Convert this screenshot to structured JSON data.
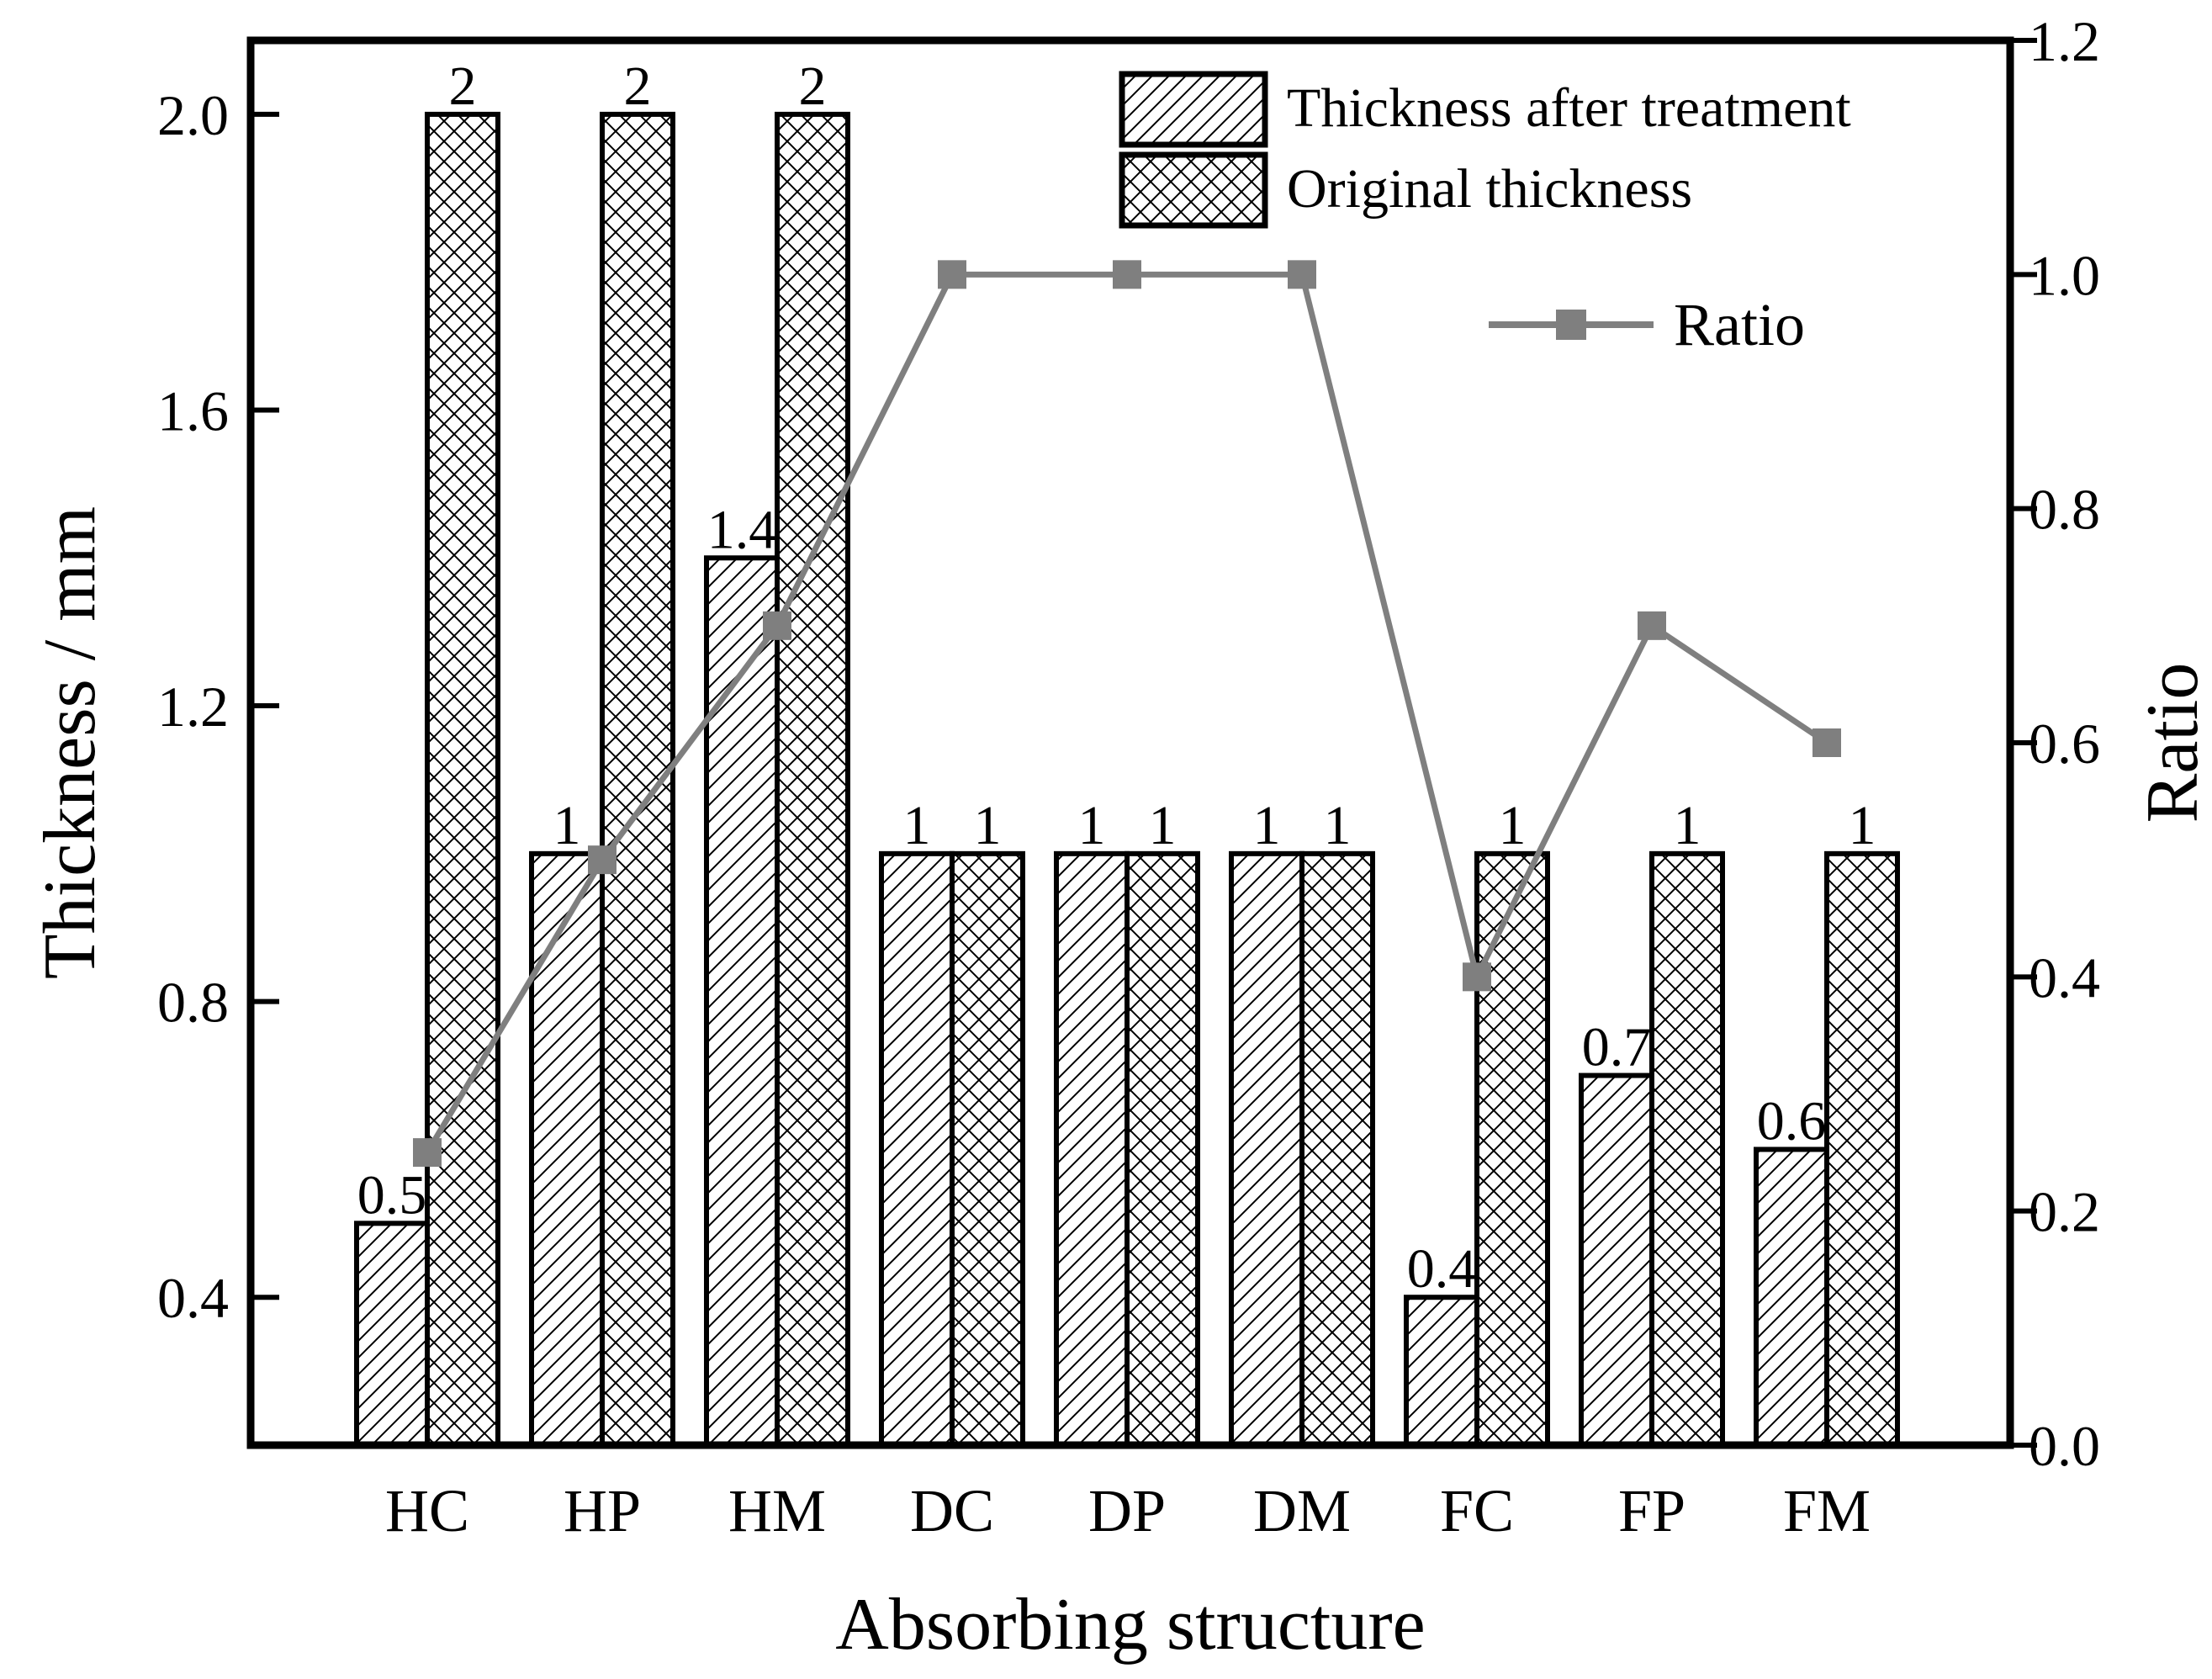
{
  "chart_data": {
    "type": "bar",
    "categories": [
      "HC",
      "HP",
      "HM",
      "DC",
      "DP",
      "DM",
      "FC",
      "FP",
      "FM"
    ],
    "xlabel": "Absorbing structure",
    "ylabel": "Thickness / mm",
    "y2label": "Ratio",
    "ylim": [
      0.2,
      2.1
    ],
    "yticks": [
      "0.4",
      "0.8",
      "1.2",
      "1.6",
      "2.0"
    ],
    "y2lim": [
      0.0,
      1.2
    ],
    "y2ticks": [
      "0.0",
      "0.2",
      "0.4",
      "0.6",
      "0.8",
      "1.0",
      "1.2"
    ],
    "series": [
      {
        "name": "Thickness after treatment",
        "pattern": "diagonal-hatch",
        "values": [
          0.5,
          1,
          1.4,
          1,
          1,
          1,
          0.4,
          0.7,
          0.6
        ],
        "labels": [
          "0.5",
          "1",
          "1.4",
          "1",
          "1",
          "1",
          "0.4",
          "0.7",
          "0.6"
        ]
      },
      {
        "name": "Original thickness",
        "pattern": "cross-hatch",
        "values": [
          2,
          2,
          2,
          1,
          1,
          1,
          1,
          1,
          1
        ],
        "labels": [
          "2",
          "2",
          "2",
          "1",
          "1",
          "1",
          "1",
          "1",
          "1"
        ]
      }
    ],
    "line_series": {
      "name": "Ratio",
      "axis": "right",
      "color": "#7f7f7f",
      "marker": "square",
      "values": [
        0.25,
        0.5,
        0.7,
        1.0,
        1.0,
        1.0,
        0.4,
        0.7,
        0.6
      ]
    },
    "legend_placement": "top-right",
    "grid": false
  }
}
